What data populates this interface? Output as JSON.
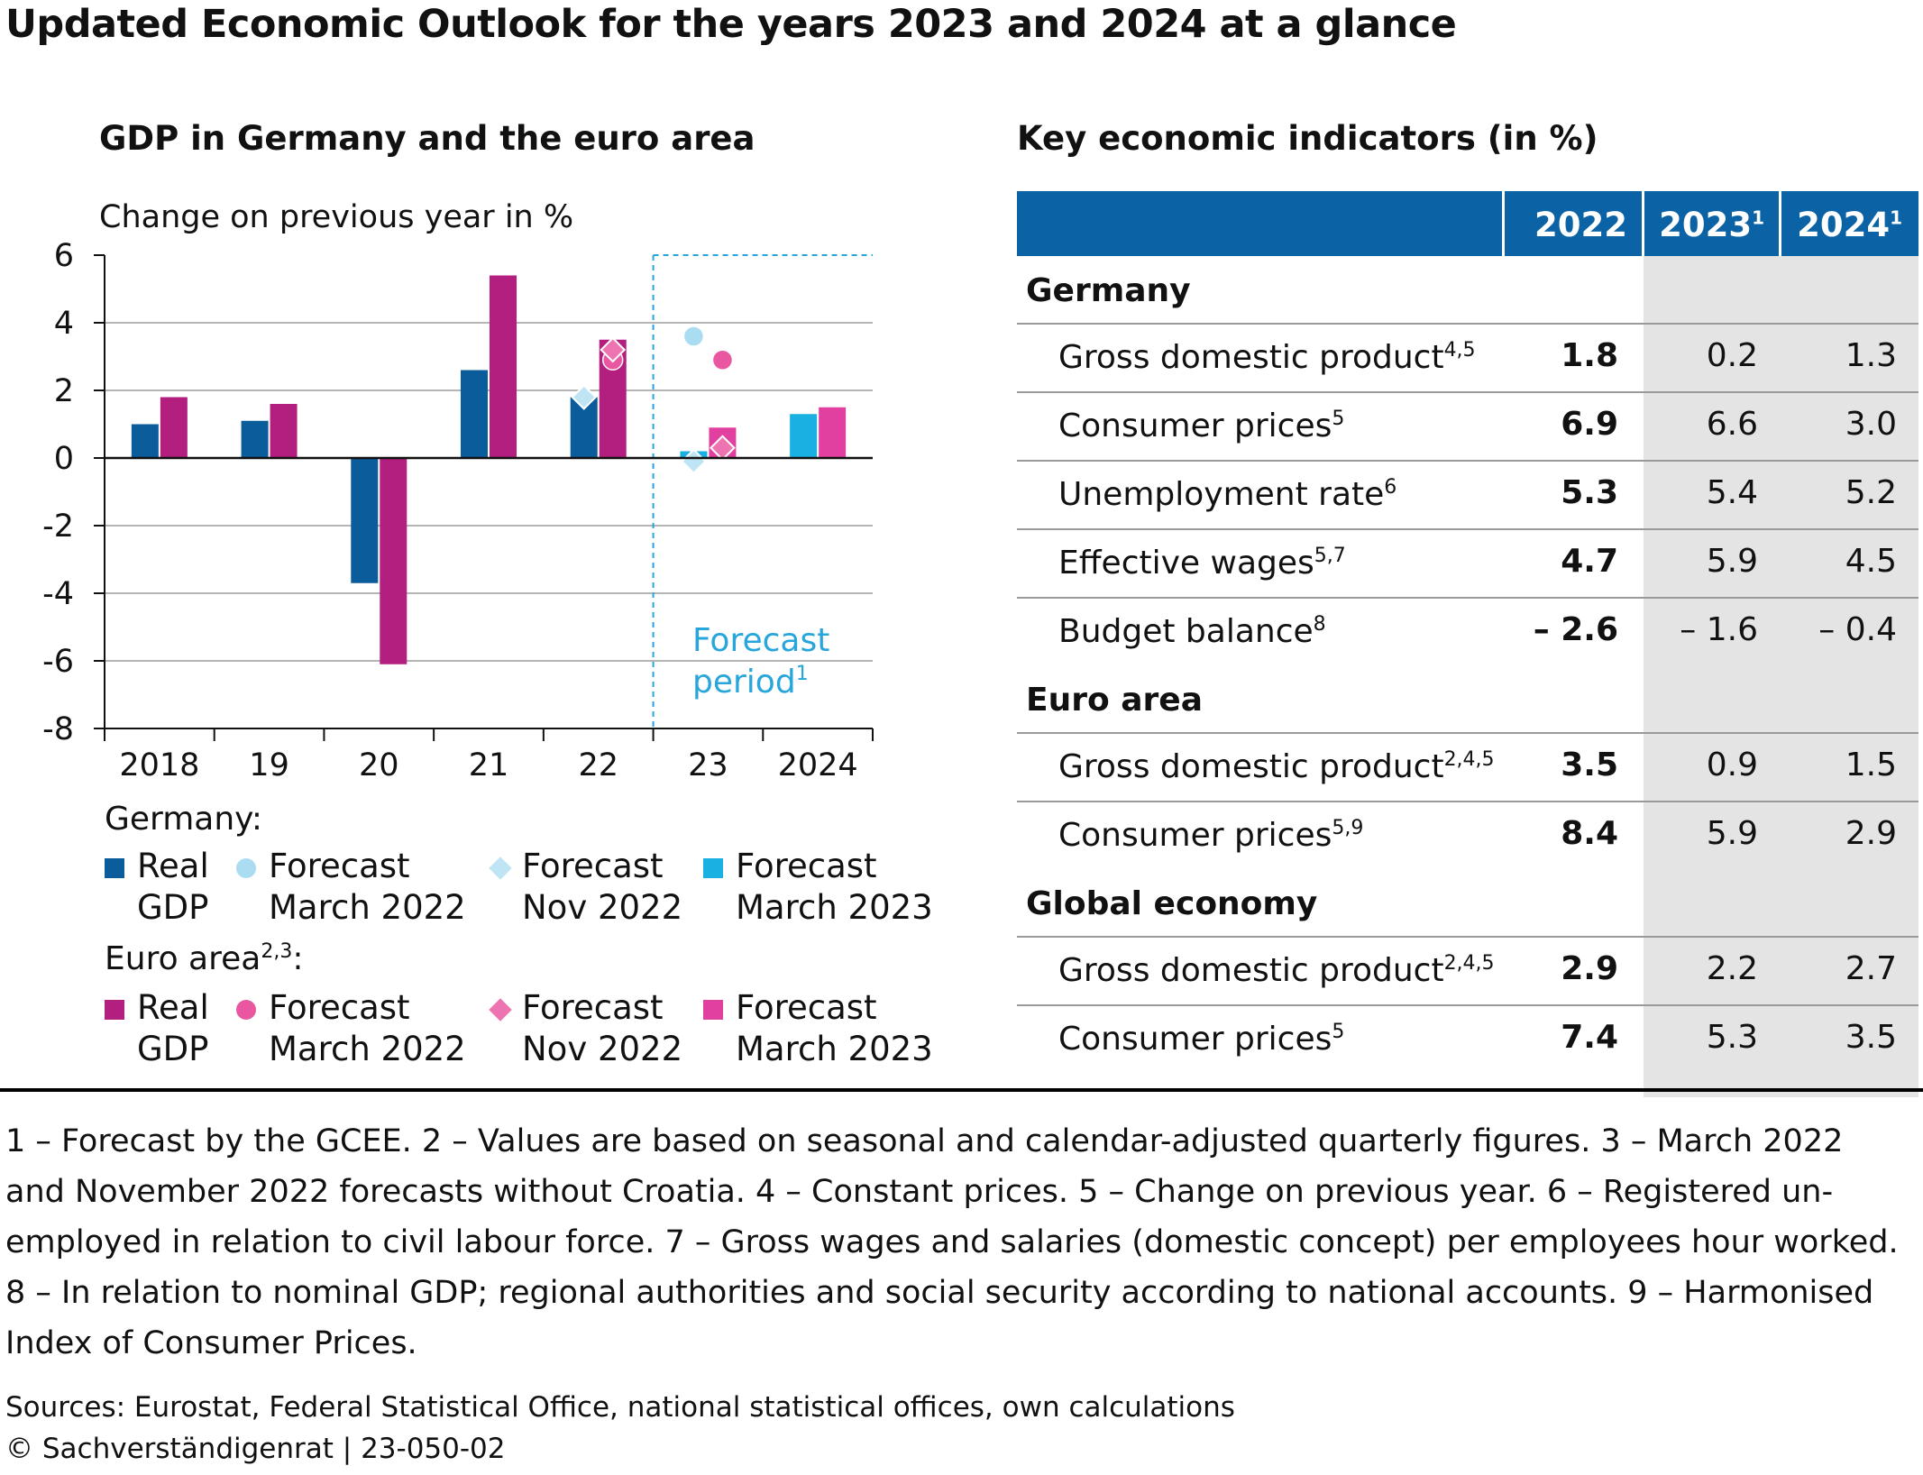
{
  "title": "Updated Economic Outlook for the years 2023 and 2024 at a glance",
  "left_heading": "GDP in Germany and the euro area",
  "right_heading": "Key economic indicators (in %)",
  "y_axis_note": "Change on previous year in %",
  "forecast_label_line1": "Forecast",
  "forecast_label_line2": "period",
  "forecast_label_sup": "1",
  "colors": {
    "germany_real": "#0b5c9a",
    "germany_forecast_mar2022": "#aadcf2",
    "germany_forecast_nov2022": "#bfe5f5",
    "germany_forecast_mar2023": "#1ab0e2",
    "euro_real": "#b21f7f",
    "euro_forecast_mar2022": "#e8579f",
    "euro_forecast_nov2022": "#ee74b1",
    "euro_forecast_mar2023": "#e140a0",
    "forecast_line": "#27a6dc",
    "table_header": "#0b63a5"
  },
  "chart_data": {
    "type": "bar",
    "categories": [
      "2018",
      "19",
      "20",
      "21",
      "22",
      "23",
      "2024"
    ],
    "ylim": [
      -8,
      6
    ],
    "yticks": [
      6,
      4,
      2,
      0,
      -2,
      -4,
      -6,
      -8
    ],
    "forecast_start_category": "23",
    "series": [
      {
        "name": "Real GDP",
        "group": "Germany",
        "kind": "bar",
        "values": [
          1.0,
          1.1,
          -3.7,
          2.6,
          1.8,
          null,
          null
        ]
      },
      {
        "name": "Real GDP",
        "group": "Euro area",
        "kind": "bar",
        "values": [
          1.8,
          1.6,
          -6.1,
          5.4,
          3.5,
          null,
          null
        ]
      },
      {
        "name": "Forecast March 2023",
        "group": "Germany",
        "kind": "bar",
        "values": [
          null,
          null,
          null,
          null,
          null,
          0.2,
          1.3
        ]
      },
      {
        "name": "Forecast March 2023",
        "group": "Euro area",
        "kind": "bar",
        "values": [
          null,
          null,
          null,
          null,
          null,
          0.9,
          1.5
        ]
      },
      {
        "name": "Forecast March 2022",
        "group": "Germany",
        "kind": "circle",
        "values": [
          null,
          null,
          null,
          null,
          null,
          3.6,
          null
        ]
      },
      {
        "name": "Forecast March 2022",
        "group": "Euro area",
        "kind": "circle",
        "values": [
          null,
          null,
          null,
          null,
          2.9,
          2.9,
          null
        ]
      },
      {
        "name": "Forecast Nov 2022",
        "group": "Germany",
        "kind": "diamond",
        "values": [
          null,
          null,
          null,
          null,
          1.8,
          -0.1,
          null
        ]
      },
      {
        "name": "Forecast Nov 2022",
        "group": "Euro area",
        "kind": "diamond",
        "values": [
          null,
          null,
          null,
          null,
          3.2,
          0.3,
          null
        ]
      }
    ]
  },
  "legend": {
    "germany_title": "Germany:",
    "euro_title": "Euro area",
    "euro_title_sup": "2,3",
    "euro_title_colon": ":",
    "items": [
      {
        "line1": "Real",
        "line2": "GDP"
      },
      {
        "line1": "Forecast",
        "line2": "March 2022"
      },
      {
        "line1": "Forecast",
        "line2": "Nov 2022"
      },
      {
        "line1": "Forecast",
        "line2": "March 2023"
      }
    ]
  },
  "table": {
    "headers": [
      {
        "label": "2022",
        "sup": ""
      },
      {
        "label": "2023",
        "sup": "1"
      },
      {
        "label": "2024",
        "sup": "1"
      }
    ],
    "sections": [
      {
        "name": "Germany",
        "rows": [
          {
            "label": "Gross domestic product",
            "sup": "4,5",
            "values": [
              "1.8",
              "0.2",
              "1.3"
            ]
          },
          {
            "label": "Consumer prices",
            "sup": "5",
            "values": [
              "6.9",
              "6.6",
              "3.0"
            ]
          },
          {
            "label": "Unemployment rate",
            "sup": "6",
            "values": [
              "5.3",
              "5.4",
              "5.2"
            ]
          },
          {
            "label": "Effective wages",
            "sup": "5,7",
            "values": [
              "4.7",
              "5.9",
              "4.5"
            ]
          },
          {
            "label": "Budget balance",
            "sup": "8",
            "values": [
              "– 2.6",
              "– 1.6",
              "– 0.4"
            ]
          }
        ]
      },
      {
        "name": "Euro area",
        "rows": [
          {
            "label": "Gross domestic product",
            "sup": "2,4,5",
            "values": [
              "3.5",
              "0.9",
              "1.5"
            ]
          },
          {
            "label": "Consumer prices",
            "sup": "5,9",
            "values": [
              "8.4",
              "5.9",
              "2.9"
            ]
          }
        ]
      },
      {
        "name": "Global economy",
        "rows": [
          {
            "label": "Gross domestic product",
            "sup": "2,4,5",
            "values": [
              "2.9",
              "2.2",
              "2.7"
            ]
          },
          {
            "label": "Consumer prices",
            "sup": "5",
            "values": [
              "7.4",
              "5.3",
              "3.5"
            ]
          }
        ]
      }
    ]
  },
  "footnotes": [
    "1 – Forecast by the GCEE.  2 – Values are based on seasonal and calendar-adjusted quarterly figures.  3 – March 2022",
    "and November 2022 forecasts without Croatia.  4 – Constant prices.  5 – Change on previous year.  6 – Registered un-",
    "employed in relation to civil labour force.  7 – Gross wages and salaries (domestic concept) per employees hour worked.",
    "8 – In relation to nominal GDP; regional authorities and social security according to national accounts.  9 – Harmonised",
    "Index of Consumer Prices."
  ],
  "sources": "Sources: Eurostat, Federal Statistical Office, national statistical offices, own calculations",
  "copyright": "© Sachverständigenrat | 23-050-02"
}
